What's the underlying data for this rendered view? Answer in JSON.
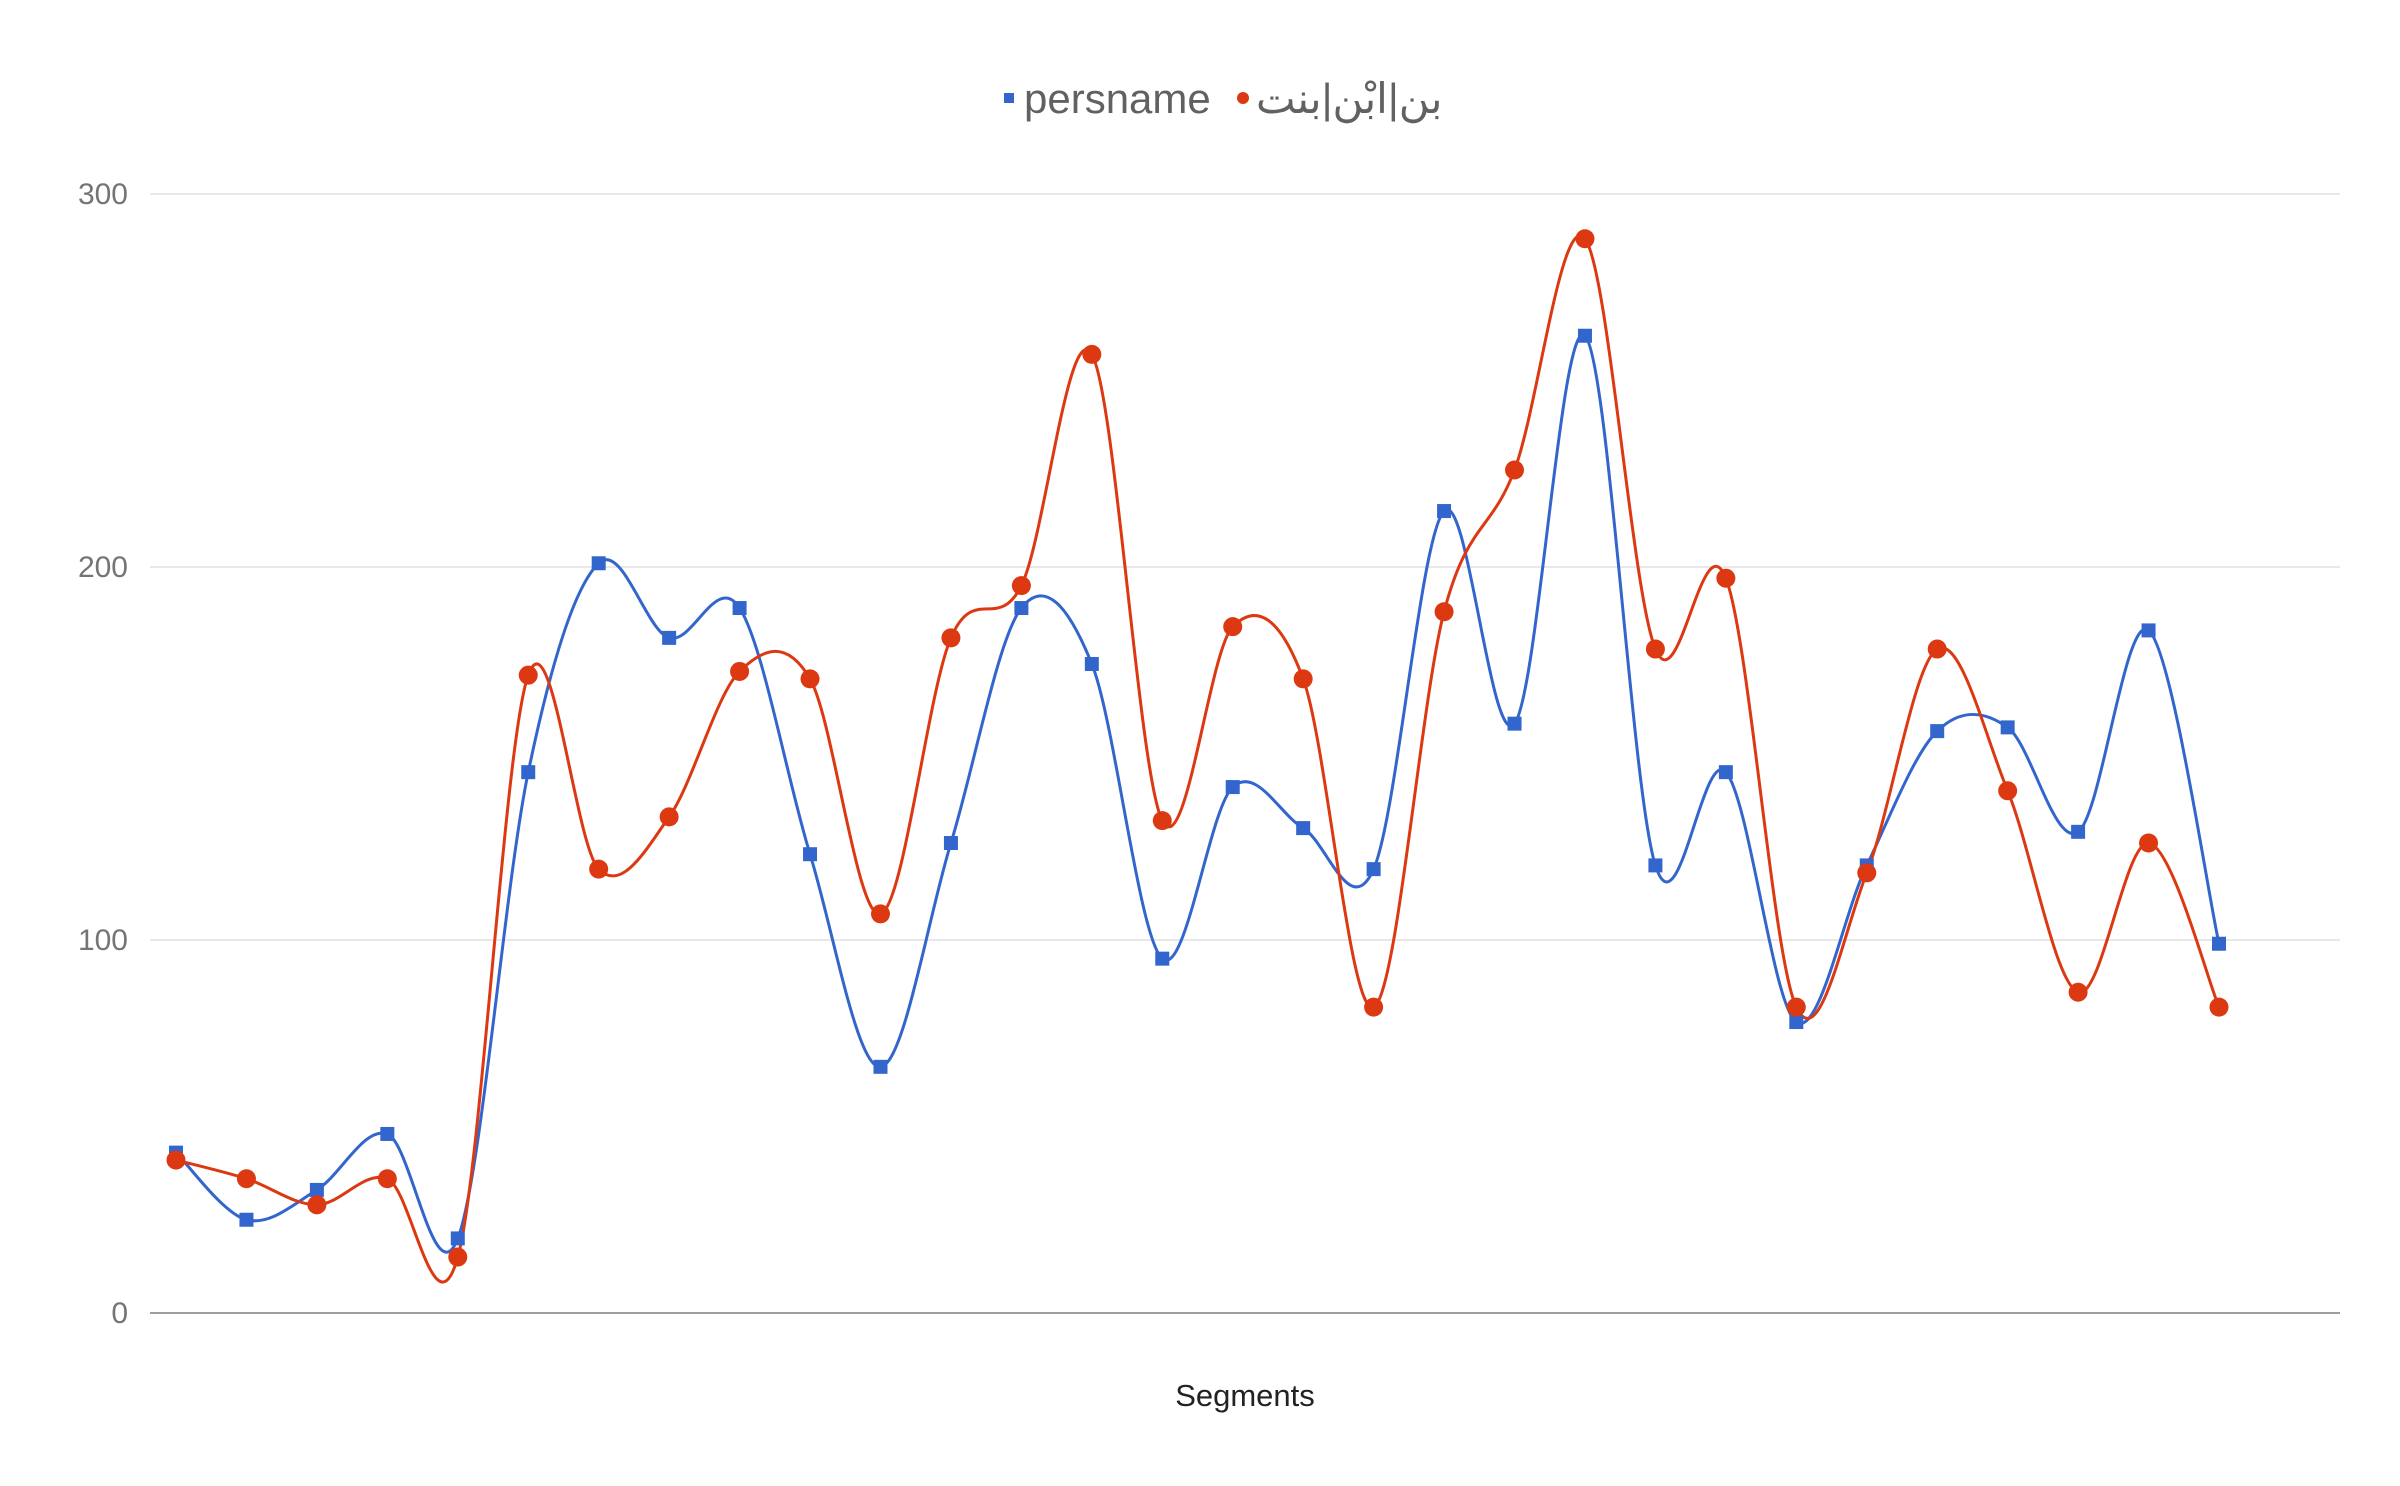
{
  "chart_data": {
    "type": "line",
    "smooth": true,
    "xlabel": "Segments",
    "ylabel": "",
    "ylim": [
      0,
      300
    ],
    "yticks": [
      0,
      100,
      200,
      300
    ],
    "grid": true,
    "legend_position": "top",
    "x": [
      1,
      2,
      3,
      4,
      5,
      6,
      7,
      8,
      9,
      10,
      11,
      12,
      13,
      14,
      15,
      16,
      17,
      18,
      19,
      20,
      21,
      22,
      23,
      24,
      25,
      26,
      27,
      28,
      29,
      30
    ],
    "series": [
      {
        "name": "persname",
        "color": "#3366cc",
        "marker": "square",
        "values": [
          43,
          25,
          33,
          48,
          20,
          145,
          201,
          181,
          189,
          123,
          66,
          126,
          189,
          174,
          95,
          141,
          130,
          119,
          215,
          158,
          262,
          120,
          145,
          78,
          120,
          156,
          157,
          129,
          183,
          99
        ]
      },
      {
        "name": "بن|ابْن|بنت",
        "color": "#dc3912",
        "marker": "circle",
        "values": [
          41,
          36,
          29,
          36,
          15,
          171,
          119,
          133,
          172,
          170,
          107,
          181,
          195,
          257,
          132,
          184,
          170,
          82,
          188,
          226,
          288,
          178,
          197,
          82,
          118,
          178,
          140,
          86,
          126,
          82
        ]
      }
    ]
  }
}
